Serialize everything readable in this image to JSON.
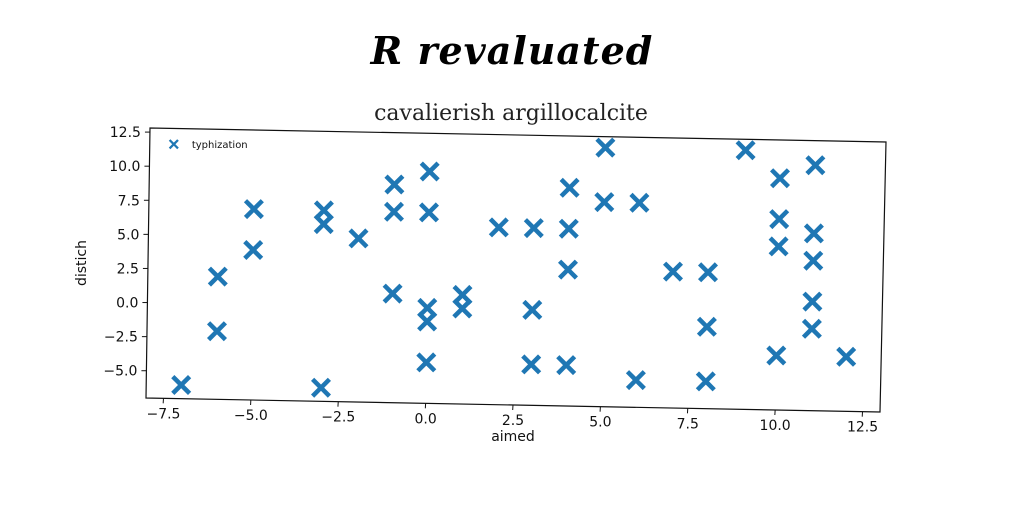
{
  "figure": {
    "suptitle": "R revaluated"
  },
  "chart_data": {
    "type": "scatter",
    "title": "cavalierish argillocalcite",
    "xlabel": "aimed",
    "ylabel": "distich",
    "xlim": [
      -8.0,
      13.0
    ],
    "ylim": [
      -7.0,
      12.8
    ],
    "xticks": [
      -7.5,
      -5.0,
      -2.5,
      0.0,
      2.5,
      5.0,
      7.5,
      10.0,
      12.5
    ],
    "xtick_labels": [
      "−7.5",
      "−5.0",
      "−2.5",
      "0.0",
      "2.5",
      "5.0",
      "7.5",
      "10.0",
      "12.5"
    ],
    "yticks": [
      -5.0,
      -2.5,
      0.0,
      2.5,
      5.0,
      7.5,
      10.0,
      12.5
    ],
    "ytick_labels": [
      "−5.0",
      "−2.5",
      "0.0",
      "2.5",
      "5.0",
      "7.5",
      "10.0",
      "12.5"
    ],
    "legend_position": "top-left",
    "grid": false,
    "series": [
      {
        "name": "typhization",
        "color": "#1f77b4",
        "marker": "X",
        "points": [
          [
            -7,
            -6
          ],
          [
            -6,
            2
          ],
          [
            -6,
            -2
          ],
          [
            -5,
            7
          ],
          [
            -5,
            4
          ],
          [
            -3,
            7
          ],
          [
            -3,
            6
          ],
          [
            -3,
            -6
          ],
          [
            -2,
            5
          ],
          [
            -1,
            9
          ],
          [
            -1,
            7
          ],
          [
            -1,
            1
          ],
          [
            0,
            10
          ],
          [
            0,
            7
          ],
          [
            0,
            0
          ],
          [
            0,
            -1
          ],
          [
            0,
            -4
          ],
          [
            1,
            1
          ],
          [
            1,
            0
          ],
          [
            2,
            6
          ],
          [
            3,
            6
          ],
          [
            3,
            0
          ],
          [
            3,
            -4
          ],
          [
            4,
            9
          ],
          [
            4,
            6
          ],
          [
            4,
            3
          ],
          [
            4,
            -4
          ],
          [
            5,
            12
          ],
          [
            5,
            8
          ],
          [
            6,
            8
          ],
          [
            6,
            -5
          ],
          [
            7,
            3
          ],
          [
            8,
            3
          ],
          [
            8,
            -1
          ],
          [
            8,
            -5
          ],
          [
            9,
            12
          ],
          [
            10,
            10
          ],
          [
            10,
            7
          ],
          [
            10,
            5
          ],
          [
            10,
            -3
          ],
          [
            11,
            11
          ],
          [
            11,
            6
          ],
          [
            11,
            4
          ],
          [
            11,
            1
          ],
          [
            11,
            -1
          ],
          [
            12,
            -3
          ]
        ]
      }
    ]
  }
}
